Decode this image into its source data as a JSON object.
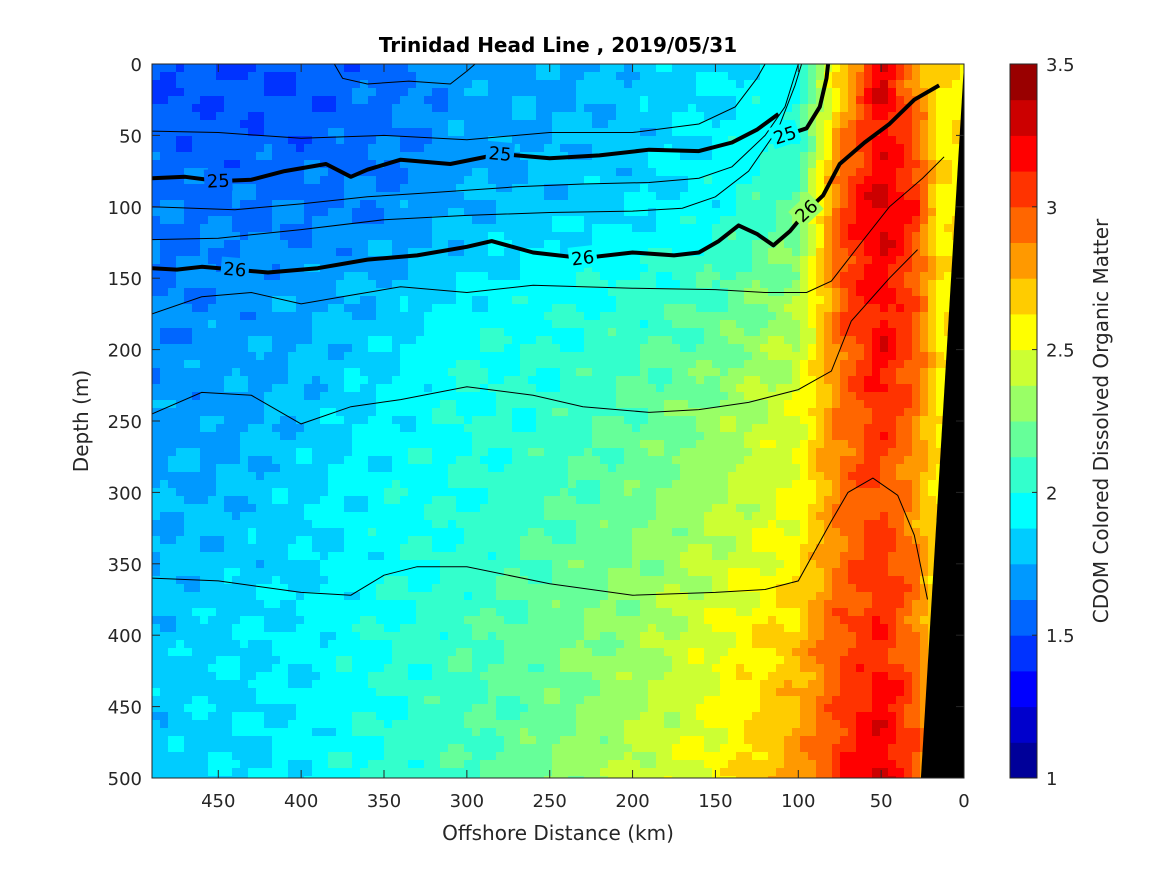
{
  "chart_data": {
    "type": "heatmap",
    "title": "Trinidad Head Line , 2019/05/31",
    "xlabel": "Offshore Distance (km)",
    "ylabel": "Depth (m)",
    "colorbar_label": "CDOM Colored Dissolved Organic Matter",
    "xlim": [
      490,
      0
    ],
    "ylim": [
      0,
      500
    ],
    "x_ticks": [
      450,
      400,
      350,
      300,
      250,
      200,
      150,
      100,
      50,
      0
    ],
    "y_ticks": [
      0,
      50,
      100,
      150,
      200,
      250,
      300,
      350,
      400,
      450,
      500
    ],
    "colorbar_range": [
      1,
      3.5
    ],
    "colorbar_ticks": [
      "1",
      "1.5",
      "2",
      "2.5",
      "3",
      "3.5"
    ],
    "colorscale": "jet",
    "grid": false,
    "field_estimate": {
      "note": "CDOM values (estimated) on a coarse grid",
      "x_km": [
        490,
        450,
        400,
        350,
        300,
        250,
        200,
        150,
        100,
        75,
        50,
        30,
        15
      ],
      "depth_m": [
        0,
        50,
        100,
        150,
        200,
        250,
        300,
        350,
        400,
        450,
        500
      ],
      "values": [
        [
          1.5,
          1.5,
          1.5,
          1.6,
          1.7,
          1.7,
          1.8,
          1.85,
          1.95,
          2.6,
          3.3,
          2.8,
          2.6
        ],
        [
          1.55,
          1.55,
          1.55,
          1.6,
          1.7,
          1.75,
          1.8,
          1.9,
          2.0,
          2.8,
          3.2,
          3.0,
          2.6
        ],
        [
          1.6,
          1.6,
          1.6,
          1.65,
          1.75,
          1.8,
          1.85,
          1.95,
          2.2,
          3.0,
          3.3,
          3.1,
          2.6
        ],
        [
          1.6,
          1.65,
          1.7,
          1.75,
          1.85,
          1.95,
          2.0,
          2.1,
          2.3,
          3.0,
          3.2,
          3.0,
          2.6
        ],
        [
          1.65,
          1.7,
          1.75,
          1.85,
          2.0,
          2.0,
          2.1,
          2.2,
          2.4,
          2.9,
          3.2,
          3.0,
          2.6
        ],
        [
          1.7,
          1.7,
          1.8,
          1.9,
          2.0,
          2.05,
          2.15,
          2.3,
          2.5,
          2.9,
          3.1,
          2.9,
          2.6
        ],
        [
          1.75,
          1.75,
          1.85,
          1.95,
          2.0,
          2.1,
          2.2,
          2.35,
          2.5,
          2.9,
          3.0,
          2.8,
          2.6
        ],
        [
          1.75,
          1.8,
          1.85,
          1.95,
          2.05,
          2.15,
          2.25,
          2.4,
          2.6,
          2.9,
          3.1,
          2.9,
          2.6
        ],
        [
          1.8,
          1.85,
          1.9,
          2.0,
          2.1,
          2.2,
          2.3,
          2.5,
          2.7,
          3.0,
          3.1,
          2.9,
          2.6
        ],
        [
          1.8,
          1.85,
          1.9,
          2.0,
          2.1,
          2.2,
          2.35,
          2.5,
          2.75,
          3.0,
          3.2,
          3.0,
          2.6
        ],
        [
          1.8,
          1.85,
          1.9,
          2.05,
          2.1,
          2.25,
          2.4,
          2.55,
          2.8,
          3.1,
          3.3,
          3.0,
          2.6
        ]
      ]
    },
    "contours": {
      "labeled": [
        {
          "label": "25",
          "points": [
            [
              490,
              80
            ],
            [
              470,
              79
            ],
            [
              450,
              82
            ],
            [
              430,
              81
            ],
            [
              410,
              75
            ],
            [
              385,
              70
            ],
            [
              370,
              79
            ],
            [
              360,
              74
            ],
            [
              340,
              67
            ],
            [
              310,
              70
            ],
            [
              280,
              63
            ],
            [
              250,
              66
            ],
            [
              220,
              64
            ],
            [
              190,
              60
            ],
            [
              160,
              61
            ],
            [
              140,
              55
            ],
            [
              125,
              46
            ],
            [
              112,
              35
            ]
          ]
        },
        {
          "label": "25",
          "points": [
            [
              108,
              50
            ],
            [
              95,
              45
            ],
            [
              87,
              30
            ],
            [
              83,
              10
            ],
            [
              82,
              0
            ]
          ]
        },
        {
          "label": "26",
          "points": [
            [
              490,
              143
            ],
            [
              475,
              144
            ],
            [
              460,
              142
            ],
            [
              440,
              144
            ],
            [
              420,
              146
            ],
            [
              390,
              143
            ],
            [
              360,
              137
            ],
            [
              330,
              134
            ],
            [
              300,
              128
            ],
            [
              285,
              124
            ],
            [
              260,
              132
            ],
            [
              230,
              136
            ],
            [
              200,
              132
            ],
            [
              175,
              134
            ],
            [
              160,
              132
            ],
            [
              148,
              124
            ],
            [
              136,
              113
            ],
            [
              125,
              119
            ],
            [
              115,
              127
            ],
            [
              105,
              117
            ],
            [
              95,
              103
            ],
            [
              85,
              92
            ],
            [
              75,
              70
            ],
            [
              60,
              55
            ],
            [
              45,
              42
            ],
            [
              30,
              25
            ],
            [
              15,
              15
            ]
          ]
        }
      ],
      "unlabeled": [
        [
          [
            380,
            0
          ],
          [
            375,
            10
          ],
          [
            360,
            14
          ],
          [
            335,
            12
          ],
          [
            310,
            14
          ],
          [
            300,
            5
          ],
          [
            295,
            0
          ]
        ],
        [
          [
            490,
            47
          ],
          [
            450,
            48
          ],
          [
            400,
            52
          ],
          [
            350,
            50
          ],
          [
            300,
            53
          ],
          [
            250,
            48
          ],
          [
            200,
            48
          ],
          [
            160,
            42
          ],
          [
            138,
            30
          ],
          [
            125,
            10
          ],
          [
            120,
            0
          ]
        ],
        [
          [
            490,
            100
          ],
          [
            440,
            102
          ],
          [
            400,
            98
          ],
          [
            360,
            93
          ],
          [
            320,
            90
          ],
          [
            270,
            86
          ],
          [
            230,
            84
          ],
          [
            190,
            83
          ],
          [
            160,
            80
          ],
          [
            140,
            72
          ],
          [
            120,
            50
          ],
          [
            108,
            30
          ],
          [
            100,
            0
          ]
        ],
        [
          [
            490,
            123
          ],
          [
            450,
            122
          ],
          [
            400,
            116
          ],
          [
            350,
            109
          ],
          [
            300,
            106
          ],
          [
            250,
            104
          ],
          [
            200,
            103
          ],
          [
            170,
            101
          ],
          [
            150,
            93
          ],
          [
            130,
            75
          ],
          [
            112,
            45
          ],
          [
            102,
            15
          ],
          [
            98,
            0
          ]
        ],
        [
          [
            490,
            175
          ],
          [
            460,
            163
          ],
          [
            430,
            160
          ],
          [
            400,
            168
          ],
          [
            370,
            162
          ],
          [
            340,
            156
          ],
          [
            300,
            160
          ],
          [
            260,
            155
          ],
          [
            200,
            157
          ],
          [
            150,
            158
          ],
          [
            120,
            160
          ],
          [
            95,
            160
          ],
          [
            80,
            152
          ],
          [
            62,
            125
          ],
          [
            45,
            100
          ],
          [
            25,
            80
          ],
          [
            12,
            65
          ]
        ],
        [
          [
            490,
            245
          ],
          [
            460,
            230
          ],
          [
            430,
            232
          ],
          [
            400,
            252
          ],
          [
            370,
            240
          ],
          [
            340,
            235
          ],
          [
            300,
            226
          ],
          [
            260,
            232
          ],
          [
            230,
            240
          ],
          [
            190,
            244
          ],
          [
            160,
            242
          ],
          [
            130,
            237
          ],
          [
            100,
            228
          ],
          [
            80,
            215
          ],
          [
            68,
            180
          ],
          [
            45,
            150
          ],
          [
            28,
            130
          ]
        ],
        [
          [
            490,
            360
          ],
          [
            450,
            362
          ],
          [
            400,
            370
          ],
          [
            370,
            372
          ],
          [
            350,
            358
          ],
          [
            330,
            352
          ],
          [
            300,
            352
          ],
          [
            250,
            364
          ],
          [
            200,
            372
          ],
          [
            150,
            370
          ],
          [
            120,
            368
          ],
          [
            100,
            362
          ],
          [
            80,
            320
          ],
          [
            70,
            300
          ],
          [
            55,
            290
          ],
          [
            40,
            302
          ],
          [
            30,
            330
          ],
          [
            22,
            375
          ]
        ]
      ]
    },
    "seafloor": {
      "color": "#000000",
      "x_top_km": 0,
      "x_bottom_km": 26
    }
  }
}
